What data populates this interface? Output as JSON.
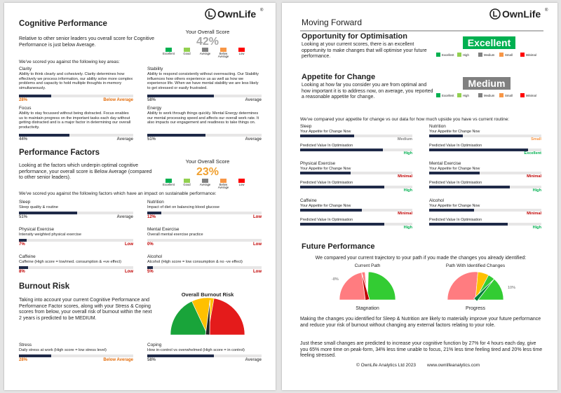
{
  "left_page": {
    "logo": {
      "name": "OwnLife",
      "mark": "®"
    },
    "cognitive": {
      "title": "Cognitive Performance",
      "intro": "Relative to other senior leaders you overall score for Cognitive Performance is just below Average.",
      "score_heading": "Your Overall Score",
      "score": "42%",
      "score_color": "#a6a6a6",
      "legend": [
        {
          "name": "Excellent",
          "color": "#00b050"
        },
        {
          "name": "Good",
          "color": "#92d050"
        },
        {
          "name": "Average",
          "color": "#808080"
        },
        {
          "name": "Below Average",
          "color": "#f79646"
        },
        {
          "name": "Low",
          "color": "#ff0000"
        }
      ],
      "subheading": "We've scored you against the following key areas:",
      "items": [
        {
          "name": "Clarity",
          "description": "Ability to think clearly and cohesively.  Clarity determines how effectively we process information, our ability solve more complex problems and capacity to hold multiple thoughts in-memory simultaneously.",
          "score": {
            "value": 28,
            "label": "28%"
          },
          "rating": "Below Average",
          "color": "#e36c0a"
        },
        {
          "name": "Stability",
          "description": "Ability to respond consistently without overreacting.  Our Stability influences how others experience us as well as how we experience life.  When we have mental stability we are less likely to get stressed or easily frustrated.",
          "score": {
            "value": 58,
            "label": "58%"
          },
          "rating": "Average",
          "color": "#595959"
        },
        {
          "name": "Focus",
          "description": "Ability to stay focussed without being distracted. Focus enables us to maintain progress on the important tasks each day without getting distracted and is a major factor in determining our overall productivity.",
          "score": {
            "value": 44,
            "label": "44%"
          },
          "rating": "Average",
          "color": "#595959"
        },
        {
          "name": "Energy",
          "description": "Ability to work through things quickly. Mental Energy determines our mental processing  speed and affects our overall work rate. It also impacts our engagement and readiness to take things on.",
          "score": {
            "value": 51,
            "label": "51%"
          },
          "rating": "Average",
          "color": "#595959"
        }
      ]
    },
    "factors": {
      "title": "Performance Factors",
      "intro": "Looking at the factors which underpin optimal cognitive performance, your overall score is Below Average (compared to other senior leaders).",
      "score_heading": "Your Overall Score",
      "score": "23%",
      "score_color": "#f0a030",
      "legend": [
        {
          "name": "Excellent",
          "color": "#00b050"
        },
        {
          "name": "Good",
          "color": "#92d050"
        },
        {
          "name": "Average",
          "color": "#808080"
        },
        {
          "name": "Below Average",
          "color": "#f79646"
        },
        {
          "name": "Low",
          "color": "#ff0000"
        }
      ],
      "subheading": "We've scored you against the following factors which have an impact on sustainable performance:",
      "items": [
        {
          "name": "Sleep",
          "description": "Sleep quality & routine",
          "score": {
            "value": 51,
            "label": "51%"
          },
          "rating": "Average",
          "color": "#595959"
        },
        {
          "name": "Nutrition",
          "description": "Impact of diet on balancing blood glucose",
          "score": {
            "value": 12,
            "label": "12%"
          },
          "rating": "Low",
          "color": "#c00000"
        },
        {
          "name": "Physical Exercise",
          "description": "Intensity weighted physical exercise",
          "score": {
            "value": 7,
            "label": "7%"
          },
          "rating": "Low",
          "color": "#c00000"
        },
        {
          "name": "Mental Exercise",
          "description": "Overall mental exercise practice",
          "score": {
            "value": 0,
            "label": "0%"
          },
          "rating": "Low",
          "color": "#c00000"
        },
        {
          "name": "Caffeine",
          "description": "Caffeine (High score = low/med. consumption & +ve effect)",
          "score": {
            "value": 8,
            "label": "8%"
          },
          "rating": "Low",
          "color": "#c00000"
        },
        {
          "name": "Alcohol",
          "description": "Alcohol  (High score = low consumption & no -ve effect)",
          "score": {
            "value": 5,
            "label": "5%"
          },
          "rating": "Low",
          "color": "#c00000"
        }
      ]
    },
    "burnout": {
      "title": "Burnout Risk",
      "text": "Taking into account your current Cognitive Performance and  Performance Factor scores, along with your Stress & Coping scores from below, your overall risk of burnout within the next 2 years is predicted to be MEDIUM.",
      "gauge_title": "Overall Burnout Risk",
      "items": [
        {
          "name": "Stress",
          "description": "Daily stress at work (High score = low stress level)",
          "score": {
            "value": 28,
            "label": "28%"
          },
          "rating": "Below Average",
          "color": "#e36c0a"
        },
        {
          "name": "Coping",
          "description": "How in-control vs overwhelmed (High score = in control)",
          "score": {
            "value": 58,
            "label": "58%"
          },
          "rating": "Average",
          "color": "#595959"
        }
      ]
    }
  },
  "right_page": {
    "header": "Moving Forward",
    "logo": {
      "name": "OwnLife",
      "mark": "®"
    },
    "opportunity": {
      "title": "Opportunity for Optimisation",
      "text": "Looking at your current scores, there is an excellent opportunity to make changes that will optimise your future performance.",
      "badge": "Excellent",
      "badge_color": "#00b050"
    },
    "appetite": {
      "title": "Appetite for Change",
      "text": "Looking at how far you consider you are from optimal and how important it is to address now, on average, you reported a reasonable appetite for change.",
      "badge": "Medium",
      "badge_color": "#808080"
    },
    "legend": [
      {
        "name": "Excellent",
        "color": "#00b050"
      },
      {
        "name": "High",
        "color": "#92d050"
      },
      {
        "name": "Medium",
        "color": "#808080"
      },
      {
        "name": "Small",
        "color": "#f79646"
      },
      {
        "name": "Minimal",
        "color": "#ff0000"
      }
    ],
    "comparison_heading": "We've compared your appetite for change vs our data for how much upside you have vs current routine:",
    "items": [
      {
        "name": "Sleep",
        "appetite": {
          "label": "Your Appetite for Change Now",
          "value": 48,
          "level": "Medium",
          "color": "#808080"
        },
        "predicted": {
          "label": "Predicted Value In Optimisation",
          "value": 74,
          "level": "High",
          "color": "#00b050"
        }
      },
      {
        "name": "Nutrition",
        "appetite": {
          "label": "Your Appetite for Change Now",
          "value": 30,
          "level": "Small",
          "color": "#f79646"
        },
        "predicted": {
          "label": "Predicted Value In Optimisation",
          "value": 88,
          "level": "Excellent",
          "color": "#00b050"
        }
      },
      {
        "name": "Physical Exercise",
        "appetite": {
          "label": "Your Appetite for Change Now",
          "value": 45,
          "level": "Minimal",
          "color": "#c00000"
        },
        "predicted": {
          "label": "Predicted Value In Optimisation",
          "value": 75,
          "level": "High",
          "color": "#00b050"
        }
      },
      {
        "name": "Mental Exercise",
        "appetite": {
          "label": "Your Appetite for Change Now",
          "value": 45,
          "level": "Minimal",
          "color": "#c00000"
        },
        "predicted": {
          "label": "Predicted Value In Optimisation",
          "value": 72,
          "level": "High",
          "color": "#00b050"
        }
      },
      {
        "name": "Caffeine",
        "appetite": {
          "label": "Your Appetite for Change Now",
          "value": 55,
          "level": "Minimal",
          "color": "#c00000"
        },
        "predicted": {
          "label": "Predicted Value In Optimisation",
          "value": 75,
          "level": "High",
          "color": "#00b050"
        }
      },
      {
        "name": "Alcohol",
        "appetite": {
          "label": "Your Appetite for Change Now",
          "value": 40,
          "level": "Minimal",
          "color": "#c00000"
        },
        "predicted": {
          "label": "Predicted Value In Optimisation",
          "value": 70,
          "level": "High",
          "color": "#00b050"
        }
      }
    ],
    "future": {
      "title": "Future Performance",
      "subheading": "We compared your current trajectory to your path if you made the changes you already identified:",
      "current": {
        "title": "Current Path",
        "change": "-8%",
        "outcome": "Stagnation"
      },
      "changed": {
        "title": "Path With Identified Changes",
        "change": "10%",
        "outcome": "Progress"
      },
      "paragraphs": [
        "Making the changes you identified for Sleep & Nutrition are likely to materially improve your future performance and reduce your risk of burnout without changing any external factors relating to your role.",
        "Just these small changes are predicted to increase your cognitive function by 27% for 4 hours each day, give you 65% more time on peak-form, 34% less time unable to focus, 21% less time feeling tired and 20% less time feeling stressed."
      ]
    },
    "footer": {
      "copyright": "© OwnLife Analytics Ltd 2023",
      "url": "www.ownlifeanalytics.com"
    }
  }
}
